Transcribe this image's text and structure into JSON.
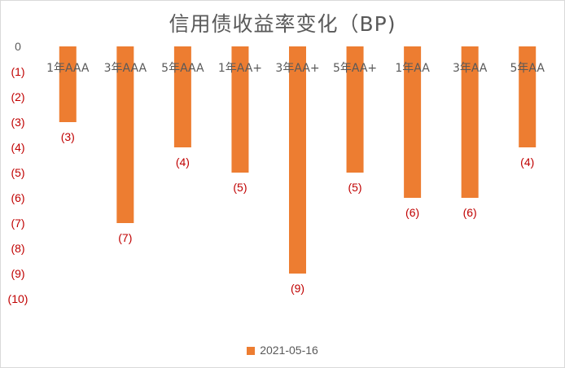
{
  "chart_data": {
    "type": "bar",
    "title": "信用债收益率变化（BP)",
    "categories": [
      "1年AAA",
      "3年AAA",
      "5年AAA",
      "1年AA+",
      "3年AA+",
      "5年AA+",
      "1年AA",
      "3年AA",
      "5年AA"
    ],
    "series": [
      {
        "name": "2021-05-16",
        "values": [
          -3,
          -7,
          -4,
          -5,
          -9,
          -5,
          -6,
          -6,
          -4
        ]
      }
    ],
    "data_labels": [
      "(3)",
      "(7)",
      "(4)",
      "(5)",
      "(9)",
      "(5)",
      "(6)",
      "(6)",
      "(4)"
    ],
    "ylim": [
      -10,
      0
    ],
    "y_ticks": [
      0,
      -1,
      -2,
      -3,
      -4,
      -5,
      -6,
      -7,
      -8,
      -9,
      -10
    ],
    "y_tick_labels": [
      "0",
      "(1)",
      "(2)",
      "(3)",
      "(4)",
      "(5)",
      "(6)",
      "(7)",
      "(8)",
      "(9)",
      "(10)"
    ],
    "grid": false,
    "legend_position": "bottom",
    "colors": {
      "bar": "#ED7D31",
      "negative_label": "#C00000",
      "category_text": "#595959",
      "title": "#595959"
    }
  }
}
